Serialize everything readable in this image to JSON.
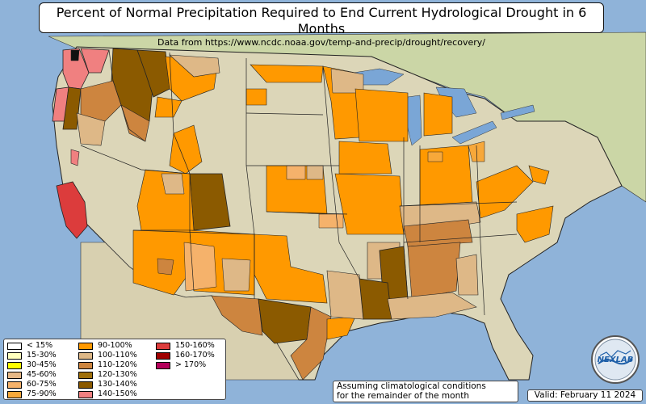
{
  "title": "Percent of Normal Precipitation Required to End Current Hydrological Drought in 6 Months",
  "subtitle": "Data from https://www.ncdc.noaa.gov/temp-and-precip/drought/recovery/",
  "note_line1": "Assuming climatological conditions",
  "note_line2": "for the remainder of the month",
  "valid": "Valid: February 11 2024",
  "logo_text": "NEXLAB",
  "colors": {
    "ocean": "#8fb3d9",
    "land": "#dcd6b8",
    "land_east": "#cfd8a8",
    "lake": "#7aa6d6",
    "border": "#222222"
  },
  "legend": [
    {
      "label": "< 15%",
      "color": "#ffffff"
    },
    {
      "label": "15-30%",
      "color": "#ffffbe"
    },
    {
      "label": "30-45%",
      "color": "#ffff00"
    },
    {
      "label": "45-60%",
      "color": "#e6b886"
    },
    {
      "label": "60-75%",
      "color": "#f5b26b"
    },
    {
      "label": "75-90%",
      "color": "#f7a83a"
    },
    {
      "label": "90-100%",
      "color": "#ff9900"
    },
    {
      "label": "100-110%",
      "color": "#deb887"
    },
    {
      "label": "110-120%",
      "color": "#cd853f"
    },
    {
      "label": "120-130%",
      "color": "#a0700a"
    },
    {
      "label": "130-140%",
      "color": "#8b5a00"
    },
    {
      "label": "140-150%",
      "color": "#f08080"
    },
    {
      "label": "150-160%",
      "color": "#dc3c3c"
    },
    {
      "label": "160-170%",
      "color": "#a00000"
    },
    {
      "label": "> 170%",
      "color": "#b4005a"
    }
  ]
}
